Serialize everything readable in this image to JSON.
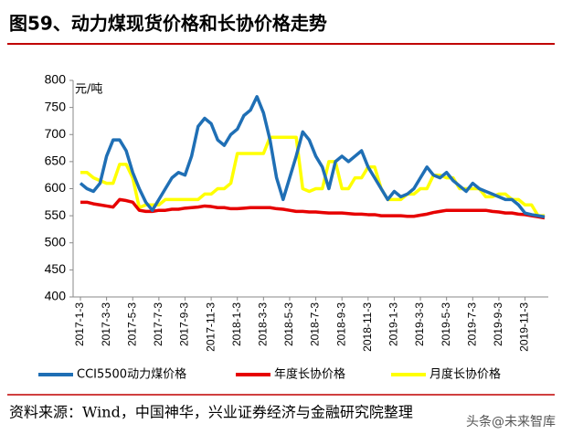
{
  "chart_data": {
    "type": "line",
    "title": "图59、动力煤现货价格和长协价格走势",
    "unit": "元/吨",
    "source": "资料来源：Wind，中国神华，兴业证券经济与金融研究院整理",
    "watermark": "头条@未来智库",
    "categories": [
      "2017-1-3",
      null,
      null,
      null,
      "2017-3-3",
      null,
      null,
      null,
      "2017-5-3",
      null,
      null,
      null,
      "2017-7-3",
      null,
      null,
      null,
      "2017-9-3",
      null,
      null,
      null,
      "2017-11-3",
      null,
      null,
      null,
      "2018-1-3",
      null,
      null,
      null,
      "2018-3-3",
      null,
      null,
      null,
      "2018-5-3",
      null,
      null,
      null,
      "2018-7-3",
      null,
      null,
      null,
      "2018-9-3",
      null,
      null,
      null,
      "2018-11-3",
      null,
      null,
      null,
      "2019-1-3",
      null,
      null,
      null,
      "2019-3-3",
      null,
      null,
      null,
      "2019-5-3",
      null,
      null,
      null,
      "2019-7-3",
      null,
      null,
      null,
      "2019-9-3",
      null,
      null,
      null,
      "2019-11-3",
      null,
      null,
      null
    ],
    "series": [
      {
        "name": "CCI5500动力煤价格",
        "color": "#1f6fb5",
        "values": [
          610,
          600,
          595,
          610,
          660,
          690,
          690,
          670,
          630,
          600,
          575,
          560,
          580,
          600,
          620,
          630,
          625,
          660,
          715,
          730,
          720,
          690,
          680,
          700,
          710,
          735,
          745,
          770,
          740,
          690,
          620,
          580,
          620,
          660,
          705,
          690,
          660,
          640,
          600,
          650,
          660,
          650,
          660,
          670,
          640,
          620,
          600,
          580,
          595,
          585,
          590,
          600,
          620,
          640,
          625,
          620,
          630,
          615,
          605,
          595,
          610,
          600,
          595,
          590,
          585,
          580,
          580,
          570,
          555,
          552,
          550,
          548
        ]
      },
      {
        "name": "年度长协价格",
        "color": "#e60000",
        "values": [
          575,
          575,
          572,
          570,
          568,
          566,
          580,
          578,
          575,
          560,
          558,
          558,
          560,
          560,
          562,
          562,
          564,
          565,
          566,
          568,
          567,
          565,
          565,
          563,
          563,
          564,
          565,
          565,
          565,
          565,
          563,
          562,
          560,
          558,
          558,
          557,
          557,
          556,
          555,
          555,
          555,
          554,
          553,
          553,
          552,
          552,
          550,
          550,
          550,
          550,
          549,
          549,
          551,
          553,
          556,
          558,
          560,
          560,
          560,
          560,
          560,
          560,
          560,
          558,
          557,
          555,
          555,
          553,
          552,
          550,
          548,
          546
        ]
      },
      {
        "name": "月度长协价格",
        "color": "#ffff00",
        "values": [
          630,
          630,
          620,
          615,
          610,
          610,
          645,
          645,
          620,
          565,
          570,
          570,
          570,
          580,
          580,
          580,
          580,
          580,
          580,
          590,
          590,
          600,
          600,
          610,
          665,
          665,
          665,
          665,
          665,
          695,
          695,
          695,
          695,
          695,
          600,
          595,
          600,
          600,
          650,
          650,
          600,
          600,
          620,
          620,
          640,
          640,
          600,
          580,
          580,
          580,
          590,
          590,
          600,
          600,
          625,
          625,
          620,
          620,
          600,
          600,
          600,
          600,
          585,
          585,
          590,
          590,
          580,
          580,
          570,
          570,
          550,
          550
        ]
      }
    ],
    "ylim": [
      400,
      800
    ],
    "yticks": [
      400,
      450,
      500,
      550,
      600,
      650,
      700,
      750,
      800
    ]
  }
}
